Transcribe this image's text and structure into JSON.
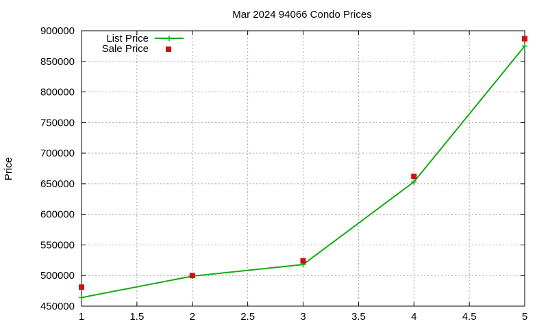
{
  "chart_data": {
    "type": "line",
    "title": "Mar 2024 94066 Condo Prices",
    "xlabel": "",
    "ylabel": "Price",
    "xlim": [
      1,
      5
    ],
    "ylim": [
      450000,
      900000
    ],
    "x_ticks": [
      "1",
      "1.5",
      "2",
      "2.5",
      "3",
      "3.5",
      "4",
      "4.5",
      "5"
    ],
    "y_ticks": [
      "450000",
      "500000",
      "550000",
      "600000",
      "650000",
      "700000",
      "750000",
      "800000",
      "850000",
      "900000"
    ],
    "grid": true,
    "legend_position": "top-left",
    "series": [
      {
        "name": "List Price",
        "style": "line-with-plus-markers",
        "color": "#11aa11",
        "x": [
          1,
          2,
          3,
          4,
          5
        ],
        "y": [
          464000,
          499000,
          518000,
          653000,
          875000
        ]
      },
      {
        "name": "Sale Price",
        "style": "square-markers",
        "color": "#cc1111",
        "x": [
          1,
          2,
          3,
          4,
          5
        ],
        "y": [
          481000,
          500000,
          524000,
          662000,
          887000
        ]
      }
    ]
  }
}
